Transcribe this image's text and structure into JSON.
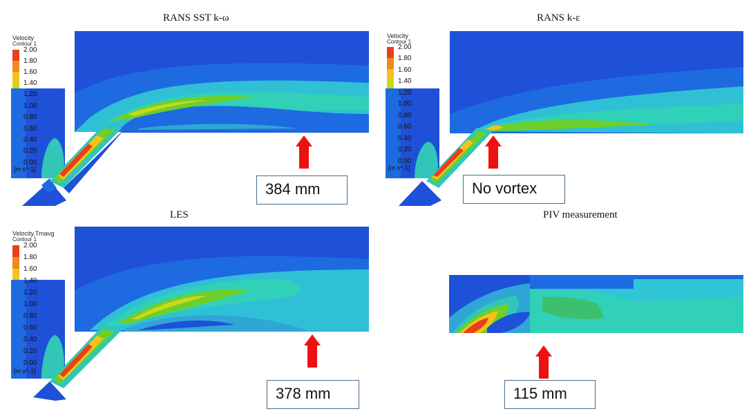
{
  "panels": [
    {
      "title": "RANS SST k-ω",
      "legend_title_1": "Velocity",
      "legend_title_2": "Contour 1",
      "callout": "384 mm"
    },
    {
      "title": "RANS k-ε",
      "legend_title_1": "Velocity",
      "legend_title_2": "Contour 1",
      "callout": "No vortex"
    },
    {
      "title": "LES",
      "legend_title_1": "Velocity.Trnavg",
      "legend_title_2": "Contour 1",
      "callout": "378 mm"
    },
    {
      "title": "PIV measurement",
      "callout": "115 mm"
    }
  ],
  "legend": {
    "ticks": [
      "2.00",
      "1.80",
      "1.60",
      "1.40",
      "1.20",
      "1.00",
      "0.80",
      "0.60",
      "0.40",
      "0.20",
      "0.00"
    ],
    "unit": "[m s^-1]",
    "colors": [
      "#e8401c",
      "#f08a1c",
      "#f5c21c",
      "#c9d91c",
      "#6fcf2a",
      "#3cc070",
      "#31c6b8",
      "#2fa6d6",
      "#2f7fe0",
      "#2e5ad8",
      "#2a3fc8"
    ]
  },
  "colors": {
    "background_flow": "#1e50d8",
    "arrow": "#ee1111",
    "callout_border": "#4a6a8c"
  }
}
